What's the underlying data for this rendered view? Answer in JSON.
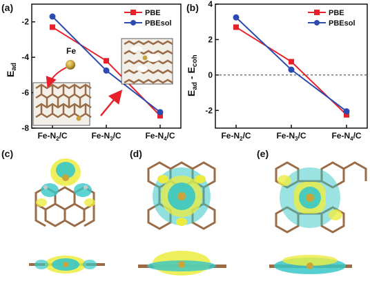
{
  "panel_labels": [
    "(a)",
    "(b)",
    "(c)",
    "(d)",
    "(e)"
  ],
  "inset_labels": {
    "fe_atom": "Fe"
  },
  "colors": {
    "pbe": "#e8202a",
    "pbesol": "#2b4bb0",
    "carbon": "#9a6b45",
    "nitrogen": "#c9c9c9",
    "iron": "#c8a43a",
    "density_yellow": "#ecec40",
    "density_cyan": "#37c7c7"
  },
  "chart_data": [
    {
      "type": "line",
      "categories": [
        "Fe-N₂/C",
        "Fe-N₃/C",
        "Fe-N₄/C"
      ],
      "ylabel": "E_ad",
      "ylim": [
        -8,
        -1
      ],
      "yticks": [
        -2,
        -4,
        -6,
        -8
      ],
      "legend": "top-right",
      "series": [
        {
          "name": "PBE",
          "values": [
            -2.3,
            -4.2,
            -7.3
          ],
          "marker": "square"
        },
        {
          "name": "PBEsol",
          "values": [
            -1.7,
            -4.75,
            -7.1
          ],
          "marker": "circle"
        }
      ]
    },
    {
      "type": "line",
      "categories": [
        "Fe-N₂/C",
        "Fe-N₃/C",
        "Fe-N₄/C"
      ],
      "ylabel": "E_ad - E_coh",
      "ylim": [
        -3,
        4
      ],
      "yticks": [
        4,
        2,
        0,
        -2
      ],
      "reference_line": 0,
      "legend": "top-right",
      "series": [
        {
          "name": "PBE",
          "values": [
            2.7,
            0.75,
            -2.25
          ],
          "marker": "square"
        },
        {
          "name": "PBEsol",
          "values": [
            3.25,
            0.3,
            -2.05
          ],
          "marker": "circle"
        }
      ]
    }
  ]
}
